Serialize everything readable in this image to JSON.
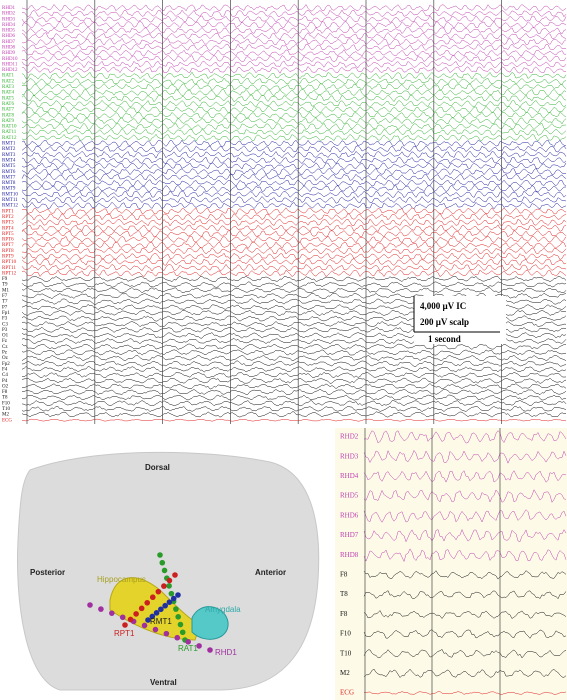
{
  "top_panel": {
    "groups": [
      {
        "color": "#c040b0",
        "labels": [
          "RHD1",
          "RHD2",
          "RHD3",
          "RHD4",
          "RHD5",
          "RHD6",
          "RHD7",
          "RHD8",
          "RHD9",
          "RHD10",
          "RHD11",
          "RHD12"
        ]
      },
      {
        "color": "#30b030",
        "labels": [
          "RAT1",
          "RAT2",
          "RAT3",
          "RAT4",
          "RAT5",
          "RAT6",
          "RAT7",
          "RAT8",
          "RAT9",
          "RAT10",
          "RAT11",
          "RAT12"
        ]
      },
      {
        "color": "#2020a0",
        "labels": [
          "RMT1",
          "RMT2",
          "RMT3",
          "RMT4",
          "RMT5",
          "RMT6",
          "RMT7",
          "RMT8",
          "RMT9",
          "RMT10",
          "RMT11",
          "RMT12"
        ]
      },
      {
        "color": "#e02020",
        "labels": [
          "RPT1",
          "RPT2",
          "RPT3",
          "RPT4",
          "RPT5",
          "RPT6",
          "RPT7",
          "RPT8",
          "RPT9",
          "RPT10",
          "RPT11",
          "RPT12"
        ]
      },
      {
        "color": "#111111",
        "labels": [
          "F9",
          "T9",
          "M1",
          "F7",
          "T7",
          "P7",
          "Fp1",
          "F3",
          "C3",
          "P3",
          "O1",
          "Fz",
          "Cz",
          "Pz",
          "Oz",
          "Fp2",
          "F4",
          "C4",
          "P4",
          "O2",
          "F8",
          "T8",
          "F10",
          "T10",
          "M2"
        ]
      },
      {
        "color": "#e02020",
        "labels": [
          "ECG"
        ]
      }
    ],
    "scale_bar": {
      "amplitude_ic": "4,000 µV IC",
      "amplitude_scalp": "200 µV scalp",
      "time": "1 second"
    }
  },
  "brain": {
    "dorsal": "Dorsal",
    "ventral": "Ventral",
    "posterior": "Posterior",
    "anterior": "Anterior",
    "hippocampus": "Hippocampus",
    "amygdala": "Amygdala",
    "electrodes": [
      "RPT1",
      "RMT1",
      "RAT1",
      "RHD1"
    ]
  },
  "detail_panel": {
    "groups": [
      {
        "color": "#c040b0",
        "labels": [
          "RHD2",
          "RHD3",
          "RHD4",
          "RHD5",
          "RHD6",
          "RHD7",
          "RHD8"
        ]
      },
      {
        "color": "#111111",
        "labels": [
          "F8",
          "T8",
          "F8",
          "F10",
          "T10",
          "M2"
        ]
      },
      {
        "color": "#e02020",
        "labels": [
          "ECG"
        ]
      }
    ]
  }
}
